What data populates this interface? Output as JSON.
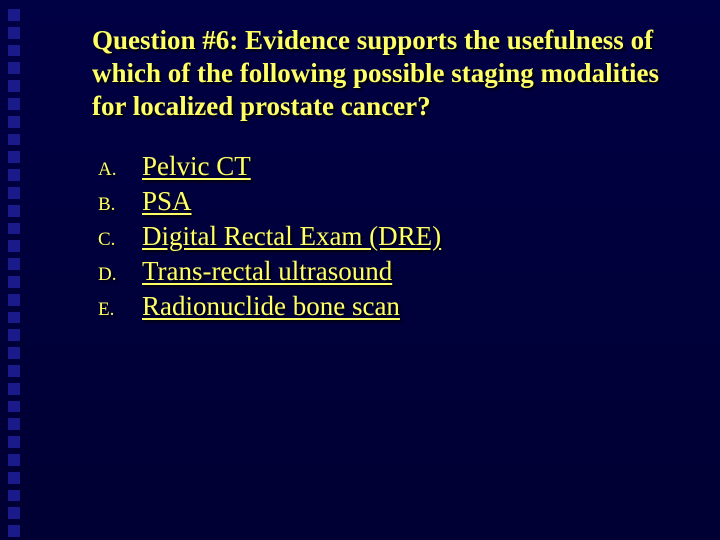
{
  "slide": {
    "background_color": "#000033",
    "accent_square_color": "#1a1a8a",
    "text_color": "#ffff66",
    "title_fontsize": 27,
    "option_letter_fontsize": 19,
    "option_text_fontsize": 27,
    "title": "Question #6:  Evidence supports the usefulness of which of the following possible staging modalities for localized prostate cancer?",
    "options": [
      {
        "letter": "A.",
        "text": "Pelvic CT"
      },
      {
        "letter": "B.",
        "text": "PSA"
      },
      {
        "letter": "C.",
        "text": "Digital Rectal Exam (DRE)"
      },
      {
        "letter": "D.",
        "text": "Trans-rectal ultrasound"
      },
      {
        "letter": "E.",
        "text": "Radionuclide bone scan"
      }
    ],
    "deco_square_count": 30
  }
}
